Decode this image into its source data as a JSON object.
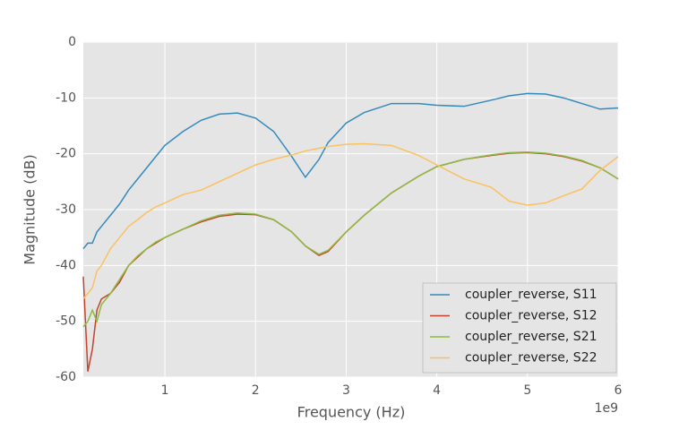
{
  "chart_data": {
    "type": "line",
    "xlabel": "Frequency (Hz)",
    "ylabel": "Magnitude (dB)",
    "x_offset_label": "1e9",
    "x": [
      0.1,
      0.15,
      0.2,
      0.25,
      0.3,
      0.4,
      0.5,
      0.6,
      0.7,
      0.8,
      0.9,
      1.0,
      1.2,
      1.4,
      1.6,
      1.8,
      2.0,
      2.2,
      2.4,
      2.55,
      2.7,
      2.8,
      3.0,
      3.2,
      3.5,
      3.8,
      4.0,
      4.3,
      4.6,
      4.8,
      5.0,
      5.2,
      5.4,
      5.6,
      5.8,
      6.0
    ],
    "series": [
      {
        "name": "coupler_reverse, S11",
        "color": "#348ABD",
        "values": [
          -37,
          -36,
          -36,
          -34,
          -33,
          -31,
          -29,
          -26.5,
          -24.5,
          -22.5,
          -20.5,
          -18.5,
          -16,
          -14,
          -12.9,
          -12.7,
          -13.6,
          -16,
          -20.5,
          -24.2,
          -21,
          -18,
          -14.5,
          -12.6,
          -11,
          -11,
          -11.3,
          -11.5,
          -10.4,
          -9.6,
          -9.2,
          -9.3,
          -10,
          -11,
          -12,
          -11.8
        ]
      },
      {
        "name": "coupler_reverse, S12",
        "color": "#C4432C",
        "values": [
          -42,
          -59,
          -55,
          -48,
          -46,
          -45,
          -43,
          -40,
          -38.5,
          -37,
          -36,
          -35,
          -33.5,
          -32.2,
          -31.2,
          -30.8,
          -30.9,
          -31.8,
          -34,
          -36.5,
          -38.2,
          -37.5,
          -34,
          -31,
          -27,
          -24,
          -22.3,
          -21,
          -20.3,
          -19.9,
          -19.8,
          -20,
          -20.5,
          -21.3,
          -22.5,
          -24.5
        ]
      },
      {
        "name": "coupler_reverse, S21",
        "color": "#8EBA42",
        "values": [
          -51,
          -50,
          -48,
          -50,
          -47,
          -45,
          -42.5,
          -40,
          -38.3,
          -37,
          -35.8,
          -35,
          -33.5,
          -32,
          -31,
          -30.6,
          -30.8,
          -31.8,
          -34,
          -36.5,
          -38,
          -37.3,
          -34,
          -31,
          -27,
          -24,
          -22.3,
          -21,
          -20.2,
          -19.8,
          -19.7,
          -19.9,
          -20.4,
          -21.2,
          -22.5,
          -24.5
        ]
      },
      {
        "name": "coupler_reverse, S22",
        "color": "#FBC15E",
        "values": [
          -46,
          -45,
          -44,
          -41,
          -40,
          -37,
          -35,
          -33,
          -31.8,
          -30.5,
          -29.5,
          -28.8,
          -27.3,
          -26.5,
          -25,
          -23.5,
          -22,
          -21,
          -20.2,
          -19.5,
          -19,
          -18.7,
          -18.3,
          -18.2,
          -18.5,
          -20.3,
          -22,
          -24.5,
          -26,
          -28.5,
          -29.2,
          -28.8,
          -27.5,
          -26.3,
          -23,
          -20.5
        ]
      }
    ],
    "xlim": [
      0.1,
      6
    ],
    "xticks": [
      1,
      2,
      3,
      4,
      5,
      6
    ],
    "ylim": [
      -60,
      0
    ],
    "yticks": [
      -60,
      -50,
      -40,
      -30,
      -20,
      -10,
      0
    ],
    "grid": true,
    "legend": "lower right"
  }
}
